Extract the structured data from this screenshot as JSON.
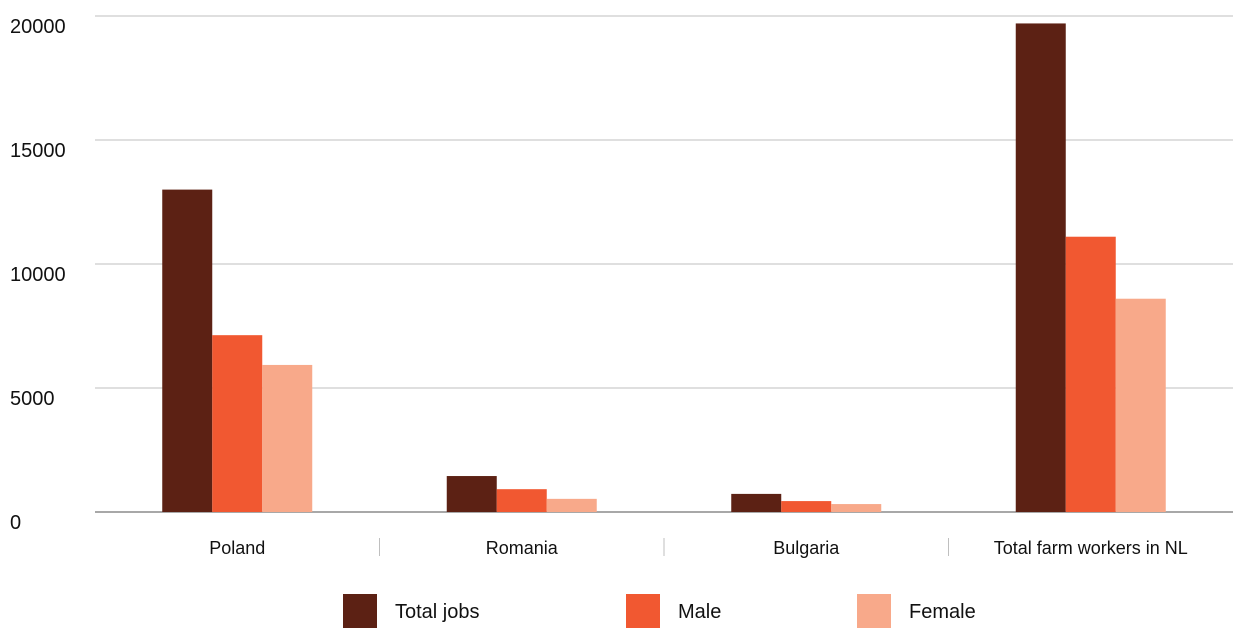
{
  "chart_data": {
    "type": "bar",
    "title": "",
    "xlabel": "",
    "ylabel": "",
    "categories": [
      "Poland",
      "Romania",
      "Bulgaria",
      "Total farm workers in NL"
    ],
    "series": [
      {
        "name": "Total jobs",
        "color": "#5c2114",
        "values": [
          13000,
          1450,
          730,
          19700
        ]
      },
      {
        "name": "Male",
        "color": "#f15831",
        "values": [
          7130,
          920,
          440,
          11100
        ]
      },
      {
        "name": "Female",
        "color": "#f8a98a",
        "values": [
          5930,
          530,
          320,
          8600
        ]
      }
    ],
    "ylim": [
      0,
      20000
    ],
    "yticks": [
      "0",
      "5000",
      "10000",
      "15000",
      "20000"
    ],
    "grid": true,
    "legend_position": "bottom"
  }
}
